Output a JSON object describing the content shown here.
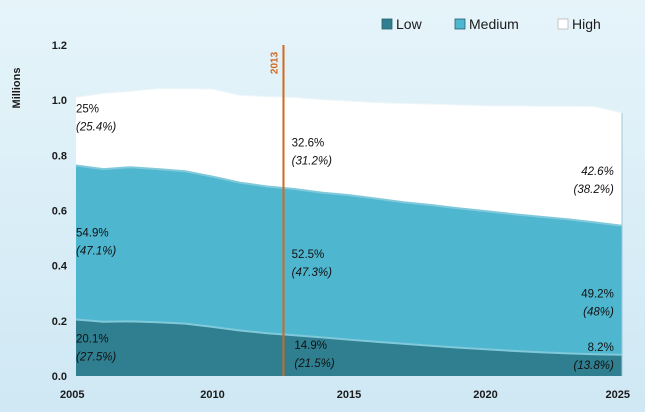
{
  "chart_data": {
    "type": "area",
    "stacked": true,
    "title": "",
    "xlabel": "",
    "ylabel": "Millions",
    "xlim": [
      2005,
      2025
    ],
    "ylim": [
      0,
      1.2
    ],
    "x_ticks": [
      "2005",
      "2010",
      "2015",
      "2020",
      "2025"
    ],
    "y_ticks": [
      "0.0",
      "0.2",
      "0.4",
      "0.6",
      "0.8",
      "1.0",
      "1.2"
    ],
    "grid": false,
    "legend_position": "top-right",
    "x": [
      2005,
      2006,
      2007,
      2008,
      2009,
      2010,
      2011,
      2012,
      2013,
      2014,
      2015,
      2016,
      2017,
      2018,
      2019,
      2020,
      2021,
      2022,
      2023,
      2024,
      2025
    ],
    "series": [
      {
        "name": "Low",
        "color": "#2f7f90",
        "values": [
          0.205,
          0.197,
          0.198,
          0.195,
          0.19,
          0.178,
          0.165,
          0.155,
          0.148,
          0.14,
          0.132,
          0.124,
          0.117,
          0.11,
          0.103,
          0.097,
          0.091,
          0.086,
          0.082,
          0.079,
          0.077
        ]
      },
      {
        "name": "Medium",
        "color": "#4fb6cf",
        "values": [
          0.558,
          0.553,
          0.559,
          0.555,
          0.552,
          0.545,
          0.536,
          0.532,
          0.53,
          0.525,
          0.524,
          0.519,
          0.513,
          0.51,
          0.505,
          0.501,
          0.496,
          0.491,
          0.486,
          0.478,
          0.468
        ]
      },
      {
        "name": "High",
        "color": "#ffffff",
        "values": [
          0.247,
          0.275,
          0.275,
          0.292,
          0.3,
          0.317,
          0.317,
          0.326,
          0.332,
          0.337,
          0.341,
          0.348,
          0.358,
          0.366,
          0.375,
          0.382,
          0.393,
          0.401,
          0.41,
          0.42,
          0.409
        ]
      }
    ],
    "marker": {
      "x": 2012.6,
      "label": "2013",
      "color": "#d2691e"
    },
    "annotations": [
      {
        "x": 2005,
        "y": 0.955,
        "anchor": "start",
        "text": "25%",
        "sub": "(25.4%)",
        "italic_main": false
      },
      {
        "x": 2005,
        "y": 0.505,
        "anchor": "start",
        "text": "54.9%",
        "sub": "(47.1%)",
        "italic_main": false
      },
      {
        "x": 2005,
        "y": 0.122,
        "anchor": "start",
        "text": "20.1%",
        "sub": "(27.5%)",
        "italic_main": false
      },
      {
        "x": 2012.9,
        "y": 0.832,
        "anchor": "start",
        "text": "32.6%",
        "sub": "(31.2%)",
        "italic_main": false
      },
      {
        "x": 2012.9,
        "y": 0.427,
        "anchor": "start",
        "text": "52.5%",
        "sub": "(47.3%)",
        "italic_main": false
      },
      {
        "x": 2013.0,
        "y": 0.097,
        "anchor": "start",
        "text": "14.9%",
        "sub": "(21.5%)",
        "italic_main": false
      },
      {
        "x": 2024.7,
        "y": 0.728,
        "anchor": "end",
        "text": "42.6%",
        "sub": "(38.2%)",
        "italic_main": true
      },
      {
        "x": 2024.7,
        "y": 0.285,
        "anchor": "end",
        "text": "49.2%",
        "sub": "(48%)",
        "italic_main": false
      },
      {
        "x": 2024.7,
        "y": 0.09,
        "anchor": "end",
        "text": "8.2%",
        "sub": "(13.8%)",
        "italic_main": false
      }
    ]
  }
}
